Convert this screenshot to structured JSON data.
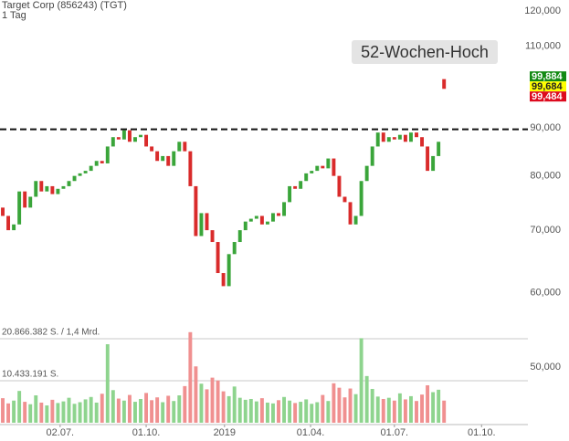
{
  "chart_data": {
    "type": "candlestick",
    "title": "Target Corp (856243) (TGT)",
    "subtitle": "1 Tag",
    "open": [
      74,
      72.5,
      70,
      71,
      77,
      74,
      76,
      79,
      77,
      78,
      76.5,
      77.5,
      78,
      79,
      80,
      80.5,
      81,
      82,
      83,
      82.5,
      86,
      88,
      87.5,
      89.5,
      87,
      88,
      88.5,
      86,
      85,
      83,
      84,
      82,
      85,
      87,
      85,
      78,
      69,
      73,
      70,
      68,
      63,
      61,
      66,
      68,
      70,
      71.5,
      72,
      72.5,
      71,
      71.5,
      73,
      72.5,
      75,
      78,
      77.5,
      79,
      80.5,
      81,
      82,
      81.5,
      83.5,
      80,
      76,
      75,
      71,
      72.5,
      79,
      82,
      86,
      89,
      87,
      88,
      87.5,
      88.5,
      87,
      89,
      88,
      86,
      81,
      84,
      101.5
    ],
    "close": [
      72.5,
      70,
      71,
      77,
      74,
      76,
      79,
      77,
      78,
      76.5,
      77.5,
      78,
      79,
      80,
      80.5,
      81,
      82,
      83,
      82.5,
      86,
      88,
      87.5,
      89.5,
      87,
      88,
      88.5,
      86,
      85,
      83,
      84,
      82,
      85,
      87,
      85,
      78,
      69,
      73,
      70,
      68,
      63,
      61,
      66,
      68,
      70,
      71.5,
      72,
      72.5,
      71,
      71.5,
      73,
      72.5,
      75,
      78,
      77.5,
      79,
      80.5,
      81,
      82,
      81.5,
      83.5,
      80,
      76,
      75,
      71,
      72.5,
      79,
      82,
      86,
      89,
      87,
      88,
      87.5,
      88.5,
      87,
      89,
      88,
      86,
      81,
      84,
      87,
      99.1
    ],
    "volume": [
      6100000,
      4800000,
      5500000,
      7900000,
      5200000,
      4600000,
      6800000,
      5000000,
      4300000,
      5700000,
      4900000,
      5300000,
      6200000,
      4700000,
      5100000,
      5800000,
      6400000,
      5000000,
      7200000,
      19500000,
      8100000,
      6000000,
      5500000,
      6900000,
      5200000,
      5900000,
      7400000,
      5600000,
      6300000,
      5100000,
      6700000,
      5400000,
      6800000,
      9100000,
      22500000,
      14000000,
      9700000,
      8300000,
      11200000,
      10500000,
      7800000,
      6600000,
      9000000,
      6200000,
      5700000,
      5900000,
      5300000,
      6100000,
      5000000,
      4800000,
      5600000,
      6400000,
      5500000,
      4900000,
      5200000,
      5800000,
      4700000,
      5100000,
      6900000,
      5400000,
      9800000,
      8700000,
      6300000,
      8500000,
      7100000,
      21000000,
      11600000,
      8400000,
      6500000,
      5900000,
      6200000,
      5500000,
      7300000,
      5800000,
      6600000,
      5400000,
      7000000,
      9300000,
      7600000,
      8200000,
      5500000
    ],
    "xlim": [
      -0.5,
      95.2
    ],
    "xticks": [
      {
        "value": 10.4,
        "label": "02.07."
      },
      {
        "value": 26.0,
        "label": "01.10."
      },
      {
        "value": 40.2,
        "label": "2019"
      },
      {
        "value": 55.8,
        "label": "01.04."
      },
      {
        "value": 71.0,
        "label": "01.07."
      },
      {
        "value": 86.8,
        "label": "01.10."
      }
    ],
    "ylim": [
      43.4,
      123.3
    ],
    "log_scale": true,
    "yticks": [
      {
        "value": 50,
        "label": "50,000"
      },
      {
        "value": 60,
        "label": "60,000"
      },
      {
        "value": 70,
        "label": "70,000"
      },
      {
        "value": 80,
        "label": "80,000"
      },
      {
        "value": 90,
        "label": "90,000"
      },
      {
        "value": 110,
        "label": "110,000"
      },
      {
        "value": 120,
        "label": "120,000"
      }
    ],
    "y2lim": [
      0,
      20866382
    ],
    "y2ticks": [
      {
        "value": 10433191,
        "label": "10.433.191 S."
      },
      {
        "value": 20866382,
        "label": "20.866.382 S. / 1,4 Mrd."
      }
    ],
    "reference_line": {
      "value": 89.7,
      "label": "52-Wochen-Hoch"
    },
    "price_labels": [
      {
        "value": 99.884,
        "label": "99,884",
        "color": "#138a13"
      },
      {
        "value": 99.684,
        "label": "99,684",
        "color": "#ffff00"
      },
      {
        "value": 99.484,
        "label": "99,484",
        "color": "#dd0a1e"
      }
    ],
    "up_color": "#3aa53a",
    "down_color": "#d92b2b",
    "volume_up_color": "#8ed48e",
    "volume_down_color": "#f09090",
    "grid": false
  }
}
